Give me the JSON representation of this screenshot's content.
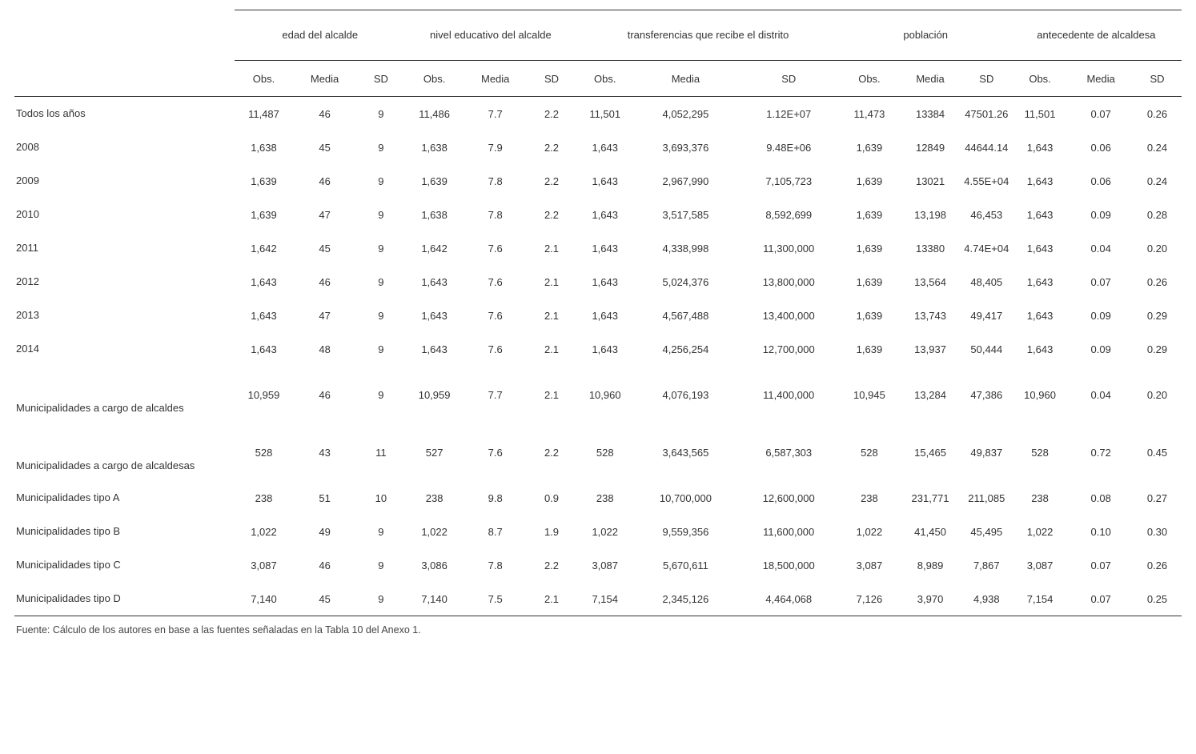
{
  "table": {
    "type": "table",
    "background_color": "#ffffff",
    "text_color": "#333333",
    "rule_color": "#333333",
    "font_family": "Arial",
    "header_fontsize": 13,
    "body_fontsize": 13,
    "groups": [
      {
        "label": "edad del alcalde",
        "sub": [
          "Obs.",
          "Media",
          "SD"
        ]
      },
      {
        "label": "nivel educativo del alcalde",
        "sub": [
          "Obs.",
          "Media",
          "SD"
        ]
      },
      {
        "label": "transferencias que recibe el distrito",
        "sub": [
          "Obs.",
          "Media",
          "SD"
        ]
      },
      {
        "label": "población",
        "sub": [
          "Obs.",
          "Media",
          "SD"
        ]
      },
      {
        "label": "antecedente de alcaldesa",
        "sub": [
          "Obs.",
          "Media",
          "SD"
        ]
      }
    ],
    "rows": [
      {
        "label": "Todos los años",
        "cells": [
          "11,487",
          "46",
          "9",
          "11,486",
          "7.7",
          "2.2",
          "11,501",
          "4,052,295",
          "1.12E+07",
          "11,473",
          "13384",
          "47501.26",
          "11,501",
          "0.07",
          "0.26"
        ]
      },
      {
        "label": "2008",
        "cells": [
          "1,638",
          "45",
          "9",
          "1,638",
          "7.9",
          "2.2",
          "1,643",
          "3,693,376",
          "9.48E+06",
          "1,639",
          "12849",
          "44644.14",
          "1,643",
          "0.06",
          "0.24"
        ]
      },
      {
        "label": "2009",
        "cells": [
          "1,639",
          "46",
          "9",
          "1,639",
          "7.8",
          "2.2",
          "1,643",
          "2,967,990",
          "7,105,723",
          "1,639",
          "13021",
          "4.55E+04",
          "1,643",
          "0.06",
          "0.24"
        ]
      },
      {
        "label": "2010",
        "cells": [
          "1,639",
          "47",
          "9",
          "1,638",
          "7.8",
          "2.2",
          "1,643",
          "3,517,585",
          "8,592,699",
          "1,639",
          "13,198",
          "46,453",
          "1,643",
          "0.09",
          "0.28"
        ]
      },
      {
        "label": "2011",
        "cells": [
          "1,642",
          "45",
          "9",
          "1,642",
          "7.6",
          "2.1",
          "1,643",
          "4,338,998",
          "11,300,000",
          "1,639",
          "13380",
          "4.74E+04",
          "1,643",
          "0.04",
          "0.20"
        ]
      },
      {
        "label": "2012",
        "cells": [
          "1,643",
          "46",
          "9",
          "1,643",
          "7.6",
          "2.1",
          "1,643",
          "5,024,376",
          "13,800,000",
          "1,639",
          "13,564",
          "48,405",
          "1,643",
          "0.07",
          "0.26"
        ]
      },
      {
        "label": "2013",
        "cells": [
          "1,643",
          "47",
          "9",
          "1,643",
          "7.6",
          "2.1",
          "1,643",
          "4,567,488",
          "13,400,000",
          "1,639",
          "13,743",
          "49,417",
          "1,643",
          "0.09",
          "0.29"
        ]
      },
      {
        "label": "2014",
        "cells": [
          "1,643",
          "48",
          "9",
          "1,643",
          "7.6",
          "2.1",
          "1,643",
          "4,256,254",
          "12,700,000",
          "1,639",
          "13,937",
          "50,444",
          "1,643",
          "0.09",
          "0.29"
        ]
      },
      {
        "label": "Municipalidades a cargo de alcaldes",
        "tall": true,
        "cells": [
          "10,959",
          "46",
          "9",
          "10,959",
          "7.7",
          "2.1",
          "10,960",
          "4,076,193",
          "11,400,000",
          "10,945",
          "13,284",
          "47,386",
          "10,960",
          "0.04",
          "0.20"
        ]
      },
      {
        "label": "Municipalidades a cargo de alcaldesas",
        "tall": true,
        "cells": [
          "528",
          "43",
          "11",
          "527",
          "7.6",
          "2.2",
          "528",
          "3,643,565",
          "6,587,303",
          "528",
          "15,465",
          "49,837",
          "528",
          "0.72",
          "0.45"
        ]
      },
      {
        "label": "Municipalidades tipo A",
        "cells": [
          "238",
          "51",
          "10",
          "238",
          "9.8",
          "0.9",
          "238",
          "10,700,000",
          "12,600,000",
          "238",
          "231,771",
          "211,085",
          "238",
          "0.08",
          "0.27"
        ]
      },
      {
        "label": "Municipalidades tipo B",
        "cells": [
          "1,022",
          "49",
          "9",
          "1,022",
          "8.7",
          "1.9",
          "1,022",
          "9,559,356",
          "11,600,000",
          "1,022",
          "41,450",
          "45,495",
          "1,022",
          "0.10",
          "0.30"
        ]
      },
      {
        "label": "Municipalidades tipo C",
        "cells": [
          "3,087",
          "46",
          "9",
          "3,086",
          "7.8",
          "2.2",
          "3,087",
          "5,670,611",
          "18,500,000",
          "3,087",
          "8,989",
          "7,867",
          "3,087",
          "0.07",
          "0.26"
        ]
      },
      {
        "label": "Municipalidades tipo D",
        "cells": [
          "7,140",
          "45",
          "9",
          "7,140",
          "7.5",
          "2.1",
          "7,154",
          "2,345,126",
          "4,464,068",
          "7,126",
          "3,970",
          "4,938",
          "7,154",
          "0.07",
          "0.25"
        ]
      }
    ],
    "footnote": "Fuente: Cálculo de los autores en base a las fuentes señaladas en la Tabla 10 del Anexo 1."
  }
}
